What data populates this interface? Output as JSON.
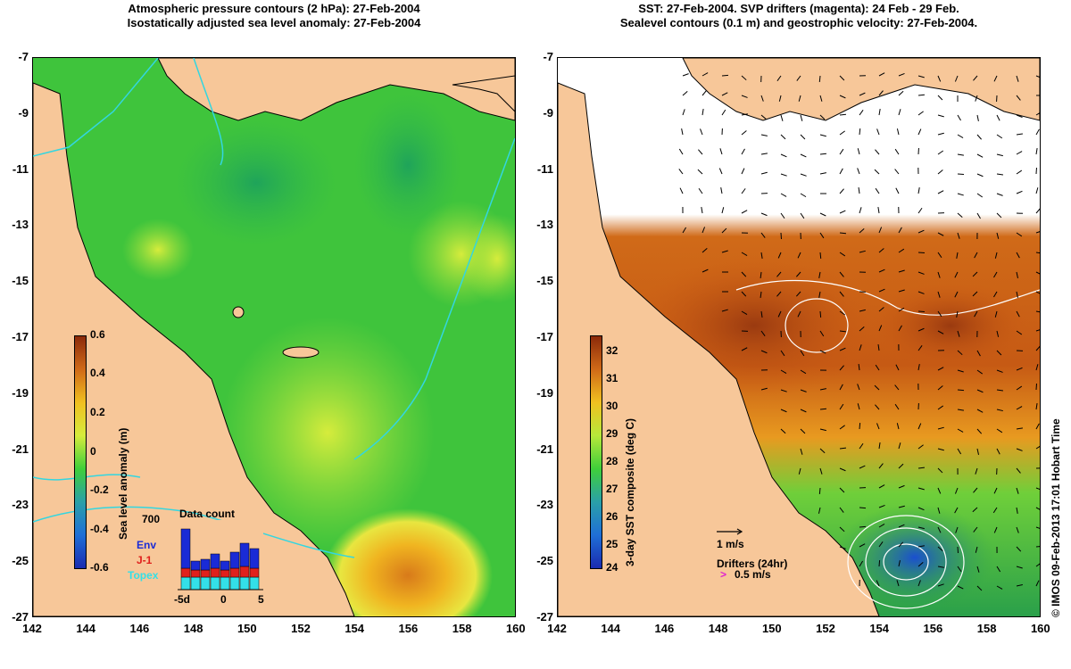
{
  "left_panel": {
    "title_line1": "Atmospheric pressure contours (2 hPa): 27-Feb-2004",
    "title_line2": "Isostatically adjusted sea level anomaly: 27-Feb-2004",
    "colorbar": {
      "title": "Sea level anomaly (m)",
      "ticks": [
        "0.6",
        "0.4",
        "0.2",
        "0",
        "-0.2",
        "-0.4",
        "-0.6"
      ]
    },
    "data_count": {
      "title": "Data count",
      "max_label": "700",
      "sources": [
        "Env",
        "J-1",
        "Topex"
      ],
      "source_colors": [
        "#1a2bd6",
        "#e0201c",
        "#33e0e8"
      ],
      "x_ticks": [
        "-5d",
        "0",
        "5"
      ]
    }
  },
  "right_panel": {
    "title_line1": "SST: 27-Feb-2004. SVP drifters (magenta): 24 Feb - 29 Feb.",
    "title_line2": "Sealevel contours (0.1 m) and geostrophic velocity: 27-Feb-2004.",
    "colorbar": {
      "title": "3-day SST composite (deg C)",
      "ticks": [
        "32",
        "31",
        "30",
        "29",
        "28",
        "27",
        "26",
        "25",
        "24"
      ]
    },
    "velocity_scale": "1 m/s",
    "drifters_label": "Drifters (24hr)",
    "drifter_scale_symbol": ">",
    "drifter_scale": "0.5 m/s"
  },
  "axes": {
    "lat_ticks": [
      "-7",
      "-9",
      "-11",
      "-13",
      "-15",
      "-17",
      "-19",
      "-21",
      "-23",
      "-25",
      "-27"
    ],
    "lon_ticks": [
      "142",
      "144",
      "146",
      "148",
      "150",
      "152",
      "154",
      "156",
      "158",
      "160"
    ]
  },
  "credit": "© IMOS 09-Feb-2013 17:01 Hobart Time",
  "colors": {
    "land": "#f7c799",
    "ocean_green": "#3fcf3a",
    "sst_warm": "#cf5d14",
    "sst_hot": "#9a3a10",
    "sst_cool": "#2aa04a",
    "cyan_contour": "#33d6e0"
  }
}
